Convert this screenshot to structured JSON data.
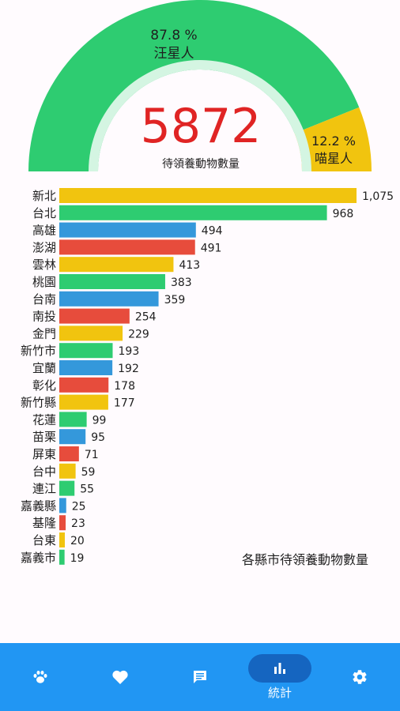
{
  "gauge": {
    "total": "5872",
    "total_label": "待領養動物數量",
    "dog_percent": "87.8 %",
    "dog_label": "汪星人",
    "cat_percent": "12.2 %",
    "cat_label": "喵星人",
    "colors": {
      "dog": "#2ecc71",
      "cat": "#f1c40f",
      "track": "#d4f5e2",
      "total": "#e02424"
    }
  },
  "caption": "各縣市待領養動物數量",
  "chart_data": {
    "type": "bar",
    "orientation": "horizontal",
    "categories": [
      "新北",
      "台北",
      "高雄",
      "澎湖",
      "雲林",
      "桃園",
      "台南",
      "南投",
      "金門",
      "新竹市",
      "宜蘭",
      "彰化",
      "新竹縣",
      "花蓮",
      "苗栗",
      "屏東",
      "台中",
      "連江",
      "嘉義縣",
      "基隆",
      "台東",
      "嘉義市"
    ],
    "values": [
      1075,
      968,
      494,
      491,
      413,
      383,
      359,
      254,
      229,
      193,
      192,
      178,
      177,
      99,
      95,
      71,
      59,
      55,
      25,
      23,
      20,
      19
    ],
    "value_labels": [
      "1,075",
      "968",
      "494",
      "491",
      "413",
      "383",
      "359",
      "254",
      "229",
      "193",
      "192",
      "178",
      "177",
      "99",
      "95",
      "71",
      "59",
      "55",
      "25",
      "23",
      "20",
      "19"
    ],
    "bar_colors": [
      "#f1c40f",
      "#2ecc71",
      "#3498db",
      "#e74c3c"
    ],
    "xlim": [
      0,
      1075
    ],
    "grid": false
  },
  "nav": {
    "items": [
      {
        "icon": "paw-icon",
        "label": ""
      },
      {
        "icon": "heart-icon",
        "label": ""
      },
      {
        "icon": "chat-icon",
        "label": ""
      },
      {
        "icon": "bar-chart-icon",
        "label": "統計",
        "active": true
      },
      {
        "icon": "gear-icon",
        "label": ""
      }
    ]
  }
}
